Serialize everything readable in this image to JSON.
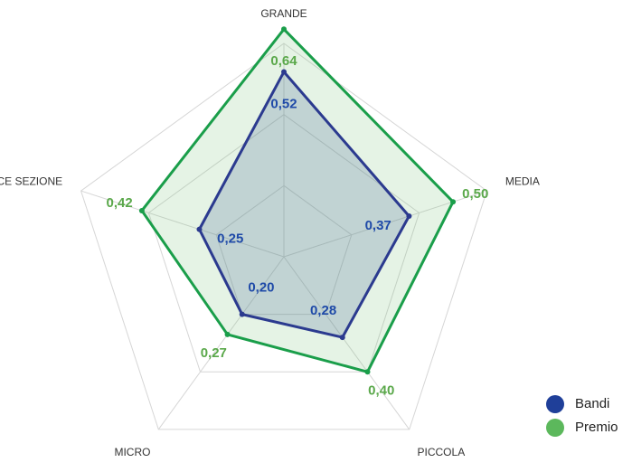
{
  "chart_data": {
    "type": "radar",
    "categories": [
      "GRANDE",
      "MEDIA",
      "PICCOLA",
      "MICRO",
      "INDICE SEZIONE"
    ],
    "series": [
      {
        "name": "Bandi",
        "color": "#2b3a8f",
        "fill": "rgba(70,100,150,0.22)",
        "label_color": "#1f4aa8",
        "legend_color": "#1f3f99",
        "values": [
          0.52,
          0.37,
          0.28,
          0.2,
          0.25
        ],
        "value_labels": [
          "0,52",
          "0,37",
          "0,28",
          "0,20",
          "0,25"
        ]
      },
      {
        "name": "Premio",
        "color": "#1a9e4a",
        "fill": "rgba(110,190,110,0.18)",
        "label_color": "#5aa84a",
        "legend_color": "#5cb85c",
        "values": [
          0.64,
          0.5,
          0.4,
          0.27,
          0.42
        ],
        "value_labels": [
          "0,64",
          "0,50",
          "0,40",
          "0,27",
          "0,42"
        ]
      }
    ],
    "ylim": [
      0,
      0.6
    ],
    "yticks": [
      0.2,
      0.4,
      0.6
    ],
    "grid": true,
    "legend": "lower right"
  }
}
